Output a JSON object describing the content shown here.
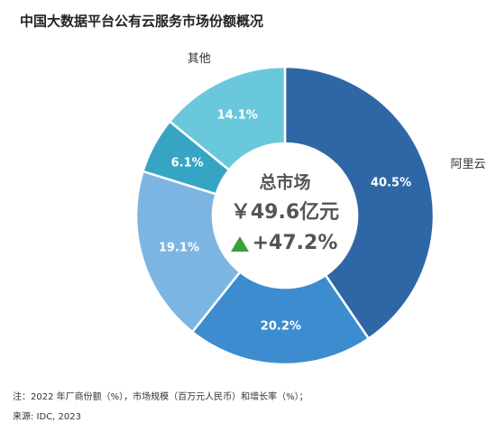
{
  "chart_data": {
    "type": "donut",
    "title": "中国大数据平台公有云服务市场份额概况",
    "categories": [
      "阿里云",
      null,
      null,
      null,
      "其他"
    ],
    "values": [
      40.5,
      20.2,
      19.1,
      6.1,
      14.1
    ],
    "value_labels": [
      "40.5%",
      "20.2%",
      "19.1%",
      "6.1%",
      "14.1%"
    ],
    "colors": [
      "#2f67a6",
      "#3c8ccf",
      "#7db5e2",
      "#36a5c3",
      "#6ac8dd"
    ],
    "center": {
      "heading": "总市场",
      "market": "￥49.6亿元",
      "growth": "+47.2%"
    },
    "note": "注：2022 年厂商份额（%），市场规模（百万元人民币）和增长率（%）；",
    "source": "来源: IDC, 2023"
  }
}
